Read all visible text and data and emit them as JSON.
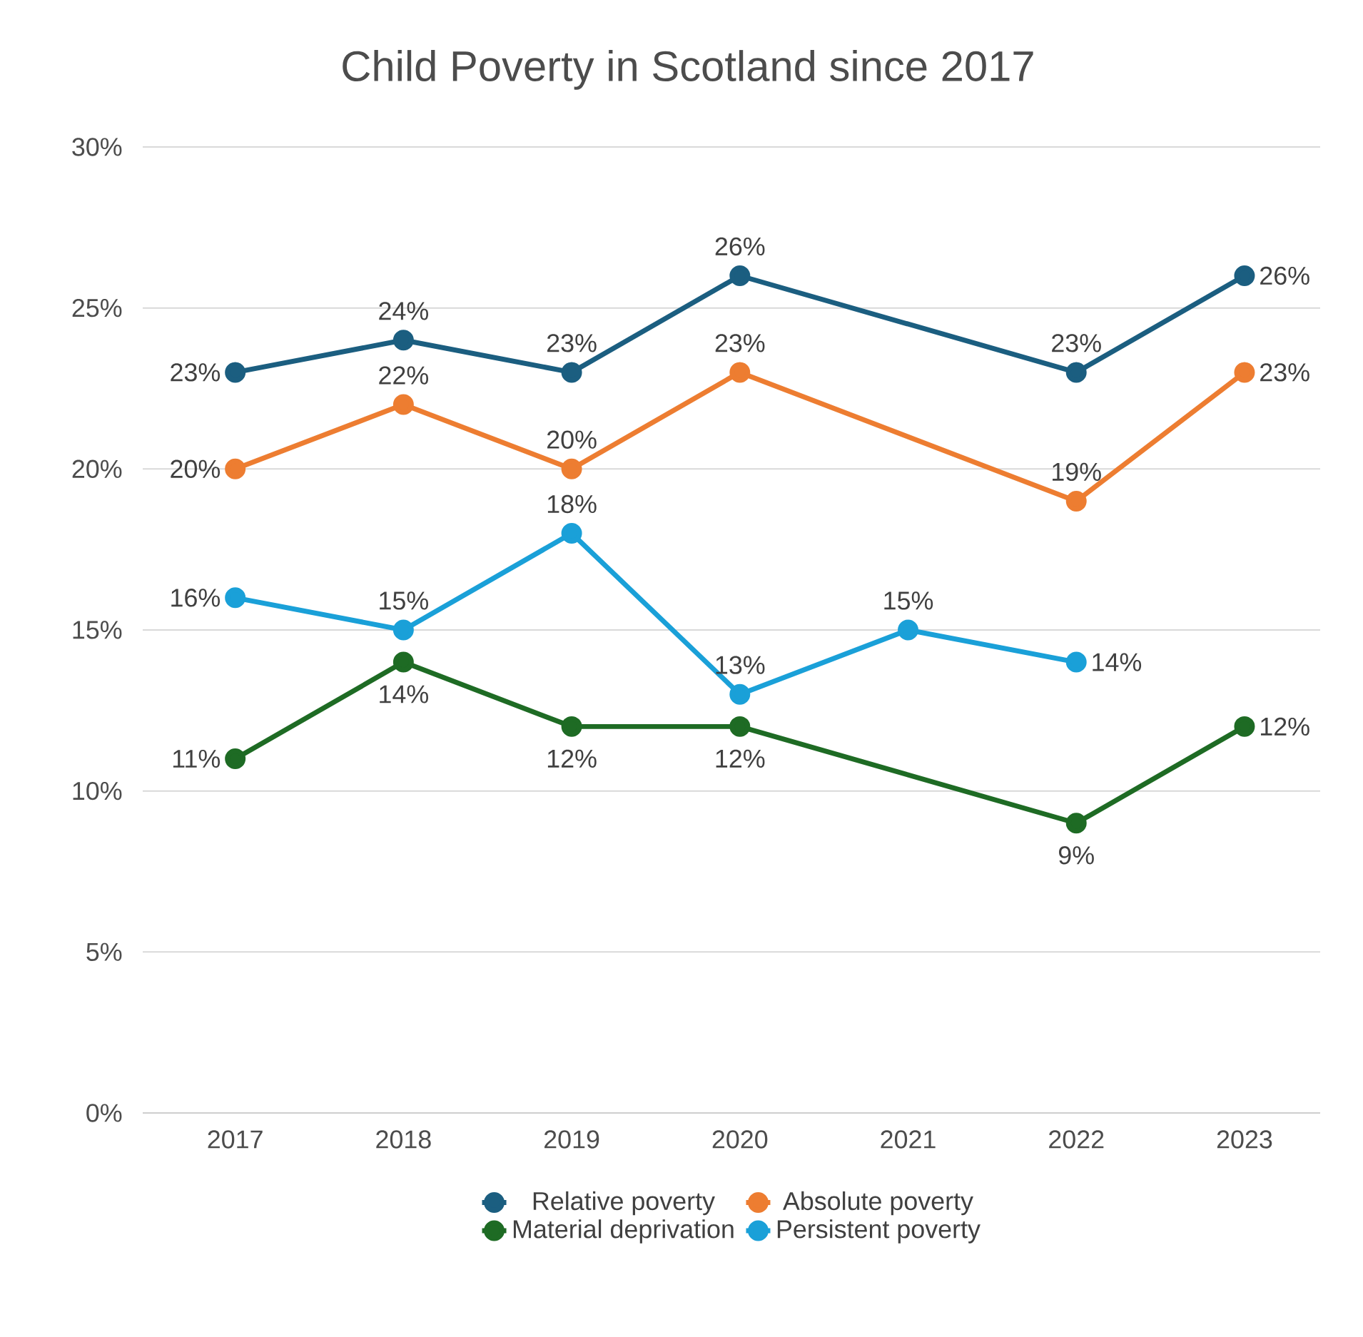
{
  "chart_data": {
    "type": "line",
    "title": "Child Poverty in Scotland since 2017",
    "categories": [
      "2017",
      "2018",
      "2019",
      "2020",
      "2021",
      "2022",
      "2023"
    ],
    "series": [
      {
        "name": "Relative poverty",
        "color": "#1b5e80",
        "values": [
          23,
          24,
          23,
          26,
          null,
          23,
          26
        ],
        "value_labels": [
          "23%",
          "24%",
          "23%",
          "26%",
          null,
          "23%",
          "26%"
        ]
      },
      {
        "name": "Absolute poverty",
        "color": "#ed7d31",
        "values": [
          20,
          22,
          20,
          23,
          null,
          19,
          23
        ],
        "value_labels": [
          "20%",
          "22%",
          "20%",
          "23%",
          null,
          "19%",
          "23%"
        ]
      },
      {
        "name": "Material deprivation",
        "color": "#1e6b24",
        "values": [
          11,
          14,
          12,
          12,
          null,
          9,
          12
        ],
        "value_labels": [
          "11%",
          "14%",
          "12%",
          "12%",
          null,
          "9%",
          "12%"
        ]
      },
      {
        "name": "Persistent poverty",
        "color": "#1aa0d8",
        "values": [
          16,
          15,
          18,
          13,
          15,
          14,
          null
        ],
        "value_labels": [
          "16%",
          "15%",
          "18%",
          "13%",
          "15%",
          "14%",
          null
        ]
      }
    ],
    "ylim": [
      0,
      30
    ],
    "yticks": [
      {
        "value": 0,
        "label": "0%"
      },
      {
        "value": 5,
        "label": "5%"
      },
      {
        "value": 10,
        "label": "10%"
      },
      {
        "value": 15,
        "label": "15%"
      },
      {
        "value": 20,
        "label": "20%"
      },
      {
        "value": 25,
        "label": "25%"
      },
      {
        "value": 30,
        "label": "30%"
      }
    ],
    "grid": "y",
    "legend": "bottom",
    "marker": "circle",
    "line_style": "solid"
  }
}
